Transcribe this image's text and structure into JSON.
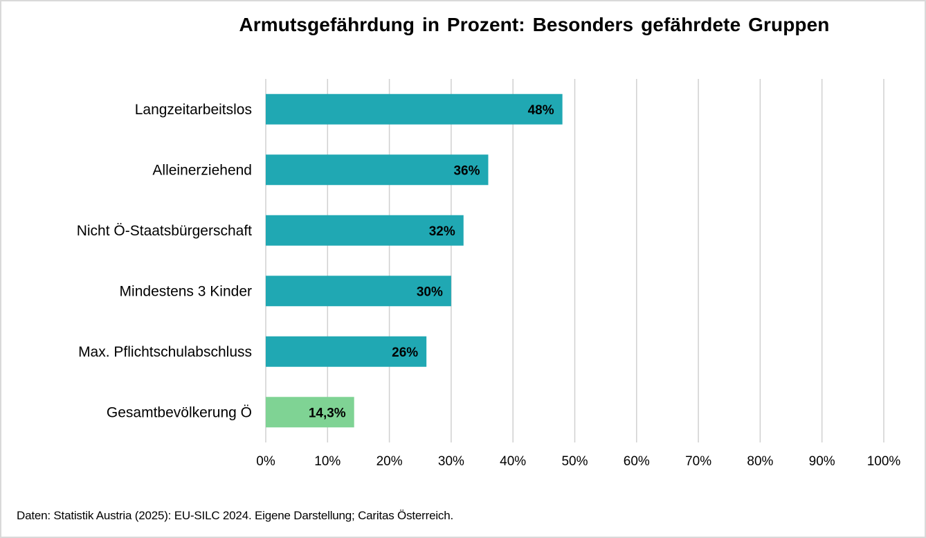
{
  "chart_data": {
    "type": "bar",
    "orientation": "horizontal",
    "title": "Armutsgefährdung in Prozent: Besonders gefährdete Gruppen",
    "categories": [
      "Langzeitarbeitslos",
      "Alleinerziehend",
      "Nicht Ö-Staatsbürgerschaft",
      "Mindestens 3 Kinder",
      "Max. Pflichtschulabschluss",
      "Gesamtbevölkerung Ö"
    ],
    "values": [
      48,
      36,
      32,
      30,
      26,
      14.3
    ],
    "value_labels": [
      "48%",
      "36%",
      "32%",
      "30%",
      "26%",
      "14,3%"
    ],
    "bar_colors": [
      "#20a8b3",
      "#20a8b3",
      "#20a8b3",
      "#20a8b3",
      "#20a8b3",
      "#7fd394"
    ],
    "xlim": [
      0,
      100
    ],
    "x_ticks": [
      0,
      10,
      20,
      30,
      40,
      50,
      60,
      70,
      80,
      90,
      100
    ],
    "x_tick_labels": [
      "0%",
      "10%",
      "20%",
      "30%",
      "40%",
      "50%",
      "60%",
      "70%",
      "80%",
      "90%",
      "100%"
    ],
    "xlabel": "",
    "ylabel": "",
    "grid": "vertical",
    "legend": "none",
    "source": "Daten: Statistik Austria (2025): EU-SILC 2024. Eigene Darstellung; Caritas Österreich."
  }
}
